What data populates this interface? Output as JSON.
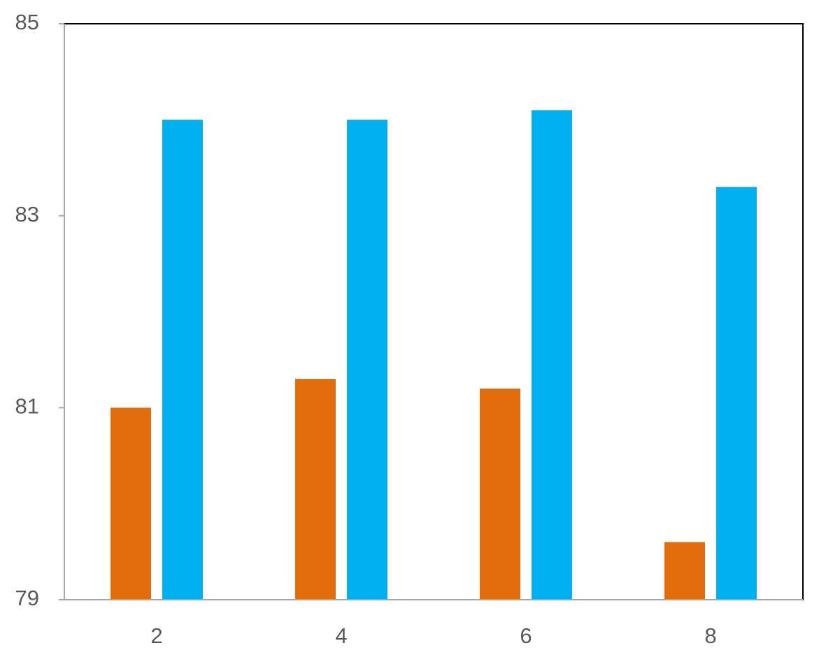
{
  "chart_data": {
    "type": "bar",
    "categories": [
      "2",
      "4",
      "6",
      "8"
    ],
    "series": [
      {
        "color": "#e36c0a",
        "values": [
          81.0,
          81.3,
          81.2,
          79.6
        ]
      },
      {
        "color": "#00b0f0",
        "values": [
          84.0,
          84.0,
          84.1,
          83.3
        ]
      }
    ],
    "ylim": [
      79,
      85
    ],
    "yticks": [
      79,
      81,
      83,
      85
    ],
    "grid": false
  }
}
